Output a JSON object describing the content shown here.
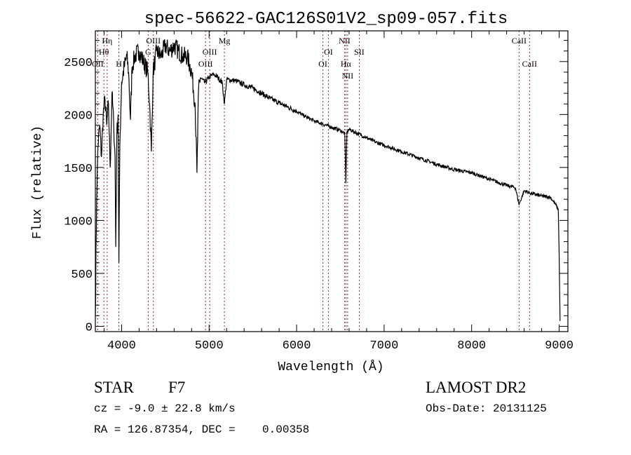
{
  "chart_data": {
    "type": "line",
    "title": "spec-56622-GAC126S01V2_sp09-057.fits",
    "xlabel": "Wavelength (Å)",
    "ylabel": "Flux (relative)",
    "xlim": [
      3700,
      9100
    ],
    "ylim": [
      -50,
      2790
    ],
    "xticks": [
      4000,
      5000,
      6000,
      7000,
      8000,
      9000
    ],
    "yticks": [
      0,
      500,
      1000,
      1500,
      2000,
      2500
    ],
    "grid": false,
    "series": [
      {
        "name": "spectrum",
        "x": [
          3700,
          3715,
          3730,
          3750,
          3770,
          3790,
          3810,
          3830,
          3850,
          3870,
          3890,
          3910,
          3925,
          3933,
          3945,
          3960,
          3969,
          3980,
          4000,
          4030,
          4060,
          4080,
          4101,
          4120,
          4150,
          4200,
          4250,
          4300,
          4320,
          4340,
          4360,
          4400,
          4450,
          4500,
          4550,
          4600,
          4650,
          4700,
          4750,
          4800,
          4840,
          4861,
          4880,
          4900,
          4950,
          5000,
          5050,
          5100,
          5150,
          5175,
          5200,
          5300,
          5400,
          5500,
          5600,
          5700,
          5800,
          5900,
          6000,
          6100,
          6200,
          6300,
          6400,
          6500,
          6550,
          6563,
          6575,
          6600,
          6700,
          6800,
          6900,
          7000,
          7200,
          7400,
          7600,
          7800,
          8000,
          8200,
          8400,
          8500,
          8542,
          8600,
          8662,
          8700,
          8800,
          8900,
          8960,
          8990,
          9000,
          9010
        ],
        "y": [
          100,
          1200,
          1700,
          1900,
          1600,
          2000,
          2150,
          1900,
          2100,
          1500,
          2200,
          1900,
          1600,
          750,
          1800,
          2000,
          600,
          1700,
          2300,
          2450,
          2550,
          2400,
          1950,
          2450,
          2550,
          2600,
          2500,
          2400,
          2100,
          1650,
          2400,
          2600,
          2550,
          2650,
          2600,
          2650,
          2600,
          2550,
          2550,
          2400,
          2100,
          1450,
          2250,
          2350,
          2300,
          2350,
          2380,
          2350,
          2300,
          2100,
          2330,
          2320,
          2280,
          2250,
          2200,
          2150,
          2110,
          2070,
          2030,
          1980,
          1940,
          1910,
          1880,
          1850,
          1820,
          1350,
          1830,
          1860,
          1820,
          1780,
          1740,
          1710,
          1650,
          1590,
          1530,
          1480,
          1450,
          1390,
          1330,
          1310,
          1150,
          1280,
          1260,
          1250,
          1230,
          1220,
          1150,
          1100,
          700,
          50
        ]
      },
      {
        "name": "spectral-lines",
        "lines": [
          {
            "label": "OII",
            "x": 3727
          },
          {
            "label": "Hθ",
            "x": 3798
          },
          {
            "label": "Hη",
            "x": 3835
          },
          {
            "label": "H",
            "x": 3969
          },
          {
            "label": "G",
            "x": 4304
          },
          {
            "label": "OIII",
            "x": 4363
          },
          {
            "label": "OIII",
            "x": 4959
          },
          {
            "label": "OIII",
            "x": 5007
          },
          {
            "label": "Mg",
            "x": 5175
          },
          {
            "label": "OI",
            "x": 6300
          },
          {
            "label": "OI",
            "x": 6363
          },
          {
            "label": "NII",
            "x": 6548
          },
          {
            "label": "Hα",
            "x": 6563
          },
          {
            "label": "NII",
            "x": 6583
          },
          {
            "label": "SII",
            "x": 6716
          },
          {
            "label": "CaII",
            "x": 8542
          },
          {
            "label": "CaII",
            "x": 8662
          }
        ]
      }
    ]
  },
  "info": {
    "class": "STAR",
    "subclass": "F7",
    "survey": "LAMOST DR2",
    "cz": "cz = -9.0 ± 22.8 km/s",
    "obs_date": "Obs-Date: 20131125",
    "radec": "RA = 126.87354, DEC =    0.00358"
  },
  "colors": {
    "line_marker": "#8b2a2a",
    "spectrum": "#000000"
  }
}
